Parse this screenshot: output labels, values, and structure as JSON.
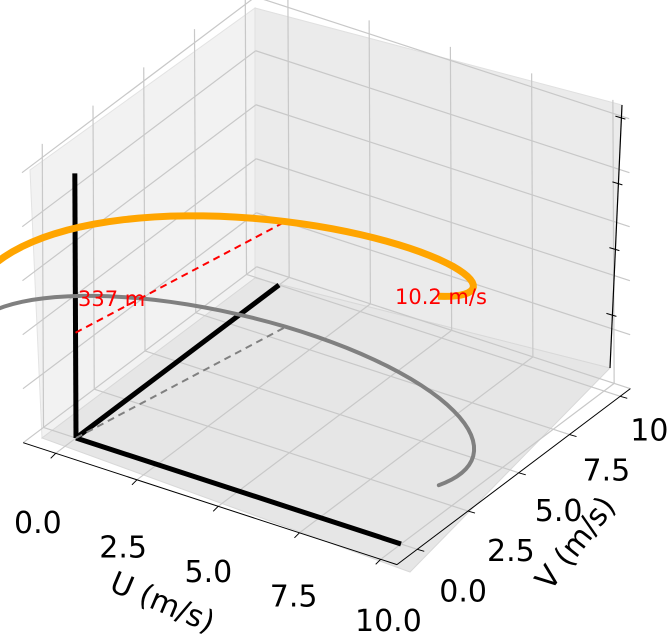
{
  "chart_data": {
    "type": "line",
    "projection": "3d",
    "title": "",
    "xlabel": "U (m/s)",
    "ylabel": "V (m/s)",
    "zlabel": "",
    "xlim": [
      0,
      10
    ],
    "ylim": [
      0,
      10
    ],
    "xticks": [
      "0.0",
      "2.5",
      "5.0",
      "7.5",
      "10.0"
    ],
    "yticks": [
      "0.0",
      "2.5",
      "5.0",
      "7.5",
      "10.0"
    ],
    "grid": true,
    "colors": {
      "hodograph": "#ffa500",
      "projection": "#808080",
      "axes": "#000000",
      "max_line": "#ff0000"
    },
    "annotations": [
      {
        "text": "337 m",
        "role": "height of max wind",
        "color": "#ff0000"
      },
      {
        "text": "10.2 m/s",
        "role": "max wind speed",
        "color": "#ff0000"
      }
    ]
  }
}
